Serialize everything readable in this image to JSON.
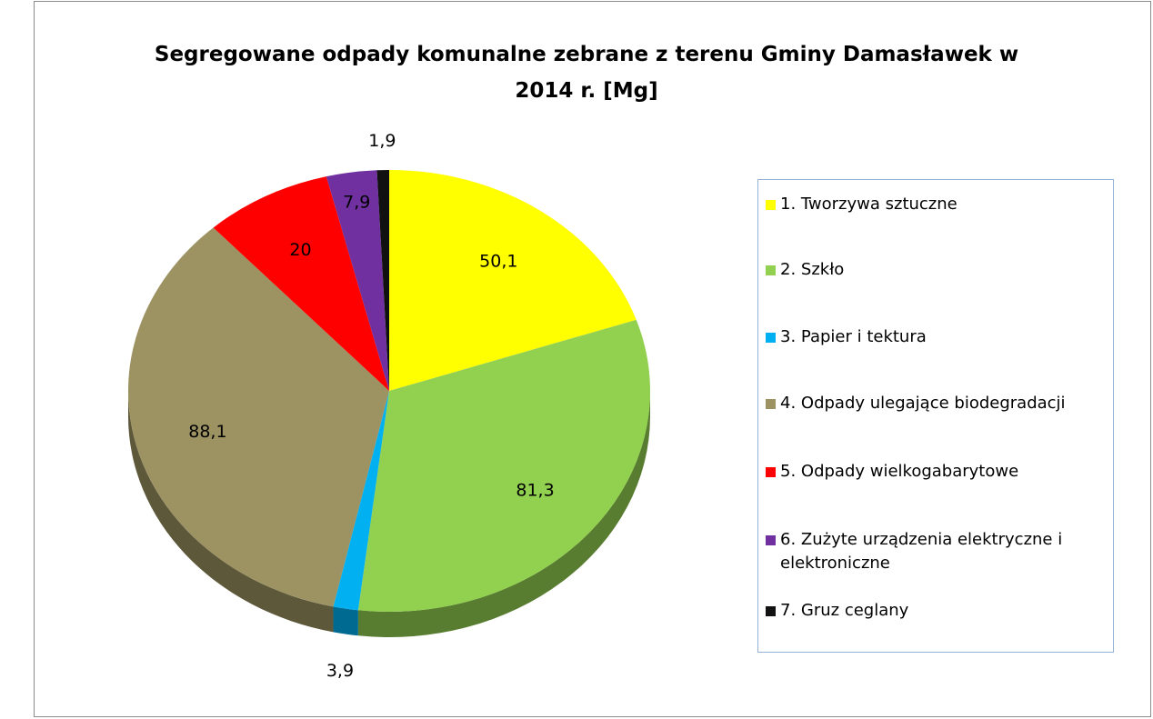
{
  "chart_data": {
    "type": "pie",
    "title": "Segregowane odpady komunalne zebrane z terenu Gminy Damasławek w 2014 r. [Mg]",
    "categories": [
      "1. Tworzywa sztuczne",
      "2. Szkło",
      "3. Papier i tektura",
      "4. Odpady ulegające biodegradacji",
      "5. Odpady wielkogabarytowe",
      "6. Zużyte urządzenia elektryczne i elektroniczne",
      "7. Gruz ceglany"
    ],
    "values": [
      50.1,
      81.3,
      3.9,
      88.1,
      20,
      7.9,
      1.9
    ],
    "value_labels": [
      "50,1",
      "81,3",
      "3,9",
      "88,1",
      "20",
      "7,9",
      "1,9"
    ],
    "colors": [
      "#ffff00",
      "#92d050",
      "#00b0f0",
      "#9d9262",
      "#ff0000",
      "#7030a0",
      "#111111"
    ],
    "legend": "right"
  }
}
